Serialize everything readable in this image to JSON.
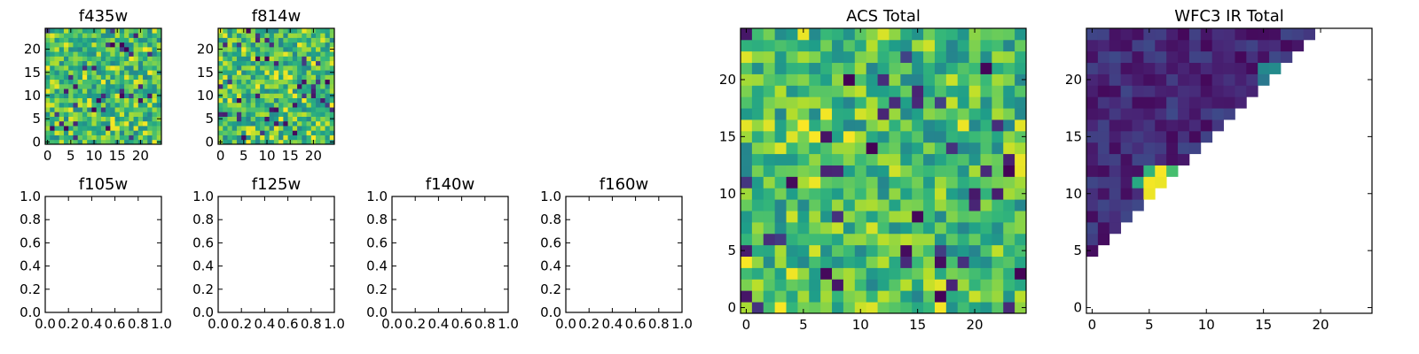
{
  "chart_data": [
    {
      "type": "heatmap",
      "title": "f435w",
      "grid_size": 25,
      "xticks": [
        0,
        5,
        10,
        15,
        20
      ],
      "yticks": [
        0,
        5,
        10,
        15,
        20
      ],
      "xlim": [
        -0.5,
        24.5
      ],
      "ylim": [
        -0.5,
        24.5
      ],
      "colormap": "viridis",
      "content": "noise",
      "seed": 11
    },
    {
      "type": "heatmap",
      "title": "f814w",
      "grid_size": 25,
      "xticks": [
        0,
        5,
        10,
        15,
        20
      ],
      "yticks": [
        0,
        5,
        10,
        15,
        20
      ],
      "xlim": [
        -0.5,
        24.5
      ],
      "ylim": [
        -0.5,
        24.5
      ],
      "colormap": "viridis",
      "content": "noise",
      "seed": 23
    },
    {
      "type": "empty",
      "title": "f105w",
      "xticks": [
        "0.0",
        "0.2",
        "0.4",
        "0.6",
        "0.8",
        "1.0"
      ],
      "yticks": [
        "0.0",
        "0.2",
        "0.4",
        "0.6",
        "0.8",
        "1.0"
      ],
      "xlim": [
        0,
        1
      ],
      "ylim": [
        0,
        1
      ]
    },
    {
      "type": "empty",
      "title": "f125w",
      "xticks": [
        "0.0",
        "0.2",
        "0.4",
        "0.6",
        "0.8",
        "1.0"
      ],
      "yticks": [
        "0.0",
        "0.2",
        "0.4",
        "0.6",
        "0.8",
        "1.0"
      ],
      "xlim": [
        0,
        1
      ],
      "ylim": [
        0,
        1
      ]
    },
    {
      "type": "empty",
      "title": "f140w",
      "xticks": [
        "0.0",
        "0.2",
        "0.4",
        "0.6",
        "0.8",
        "1.0"
      ],
      "yticks": [
        "0.0",
        "0.2",
        "0.4",
        "0.6",
        "0.8",
        "1.0"
      ],
      "xlim": [
        0,
        1
      ],
      "ylim": [
        0,
        1
      ]
    },
    {
      "type": "empty",
      "title": "f160w",
      "xticks": [
        "0.0",
        "0.2",
        "0.4",
        "0.6",
        "0.8",
        "1.0"
      ],
      "yticks": [
        "0.0",
        "0.2",
        "0.4",
        "0.6",
        "0.8",
        "1.0"
      ],
      "xlim": [
        0,
        1
      ],
      "ylim": [
        0,
        1
      ]
    },
    {
      "type": "heatmap",
      "title": "ACS Total",
      "grid_size": 25,
      "xticks": [
        0,
        5,
        10,
        15,
        20
      ],
      "yticks": [
        0,
        5,
        10,
        15,
        20
      ],
      "xlim": [
        -0.5,
        24.5
      ],
      "ylim": [
        -0.5,
        24.5
      ],
      "colormap": "viridis",
      "content": "noise",
      "seed": 37
    },
    {
      "type": "heatmap",
      "title": "WFC3 IR Total",
      "grid_size": 25,
      "xticks": [
        0,
        5,
        10,
        15,
        20
      ],
      "yticks": [
        0,
        5,
        10,
        15,
        20
      ],
      "xlim": [
        -0.5,
        24.5
      ],
      "ylim": [
        -0.5,
        24.5
      ],
      "colormap": "viridis",
      "content": "upper-left triangle (cells with row >= col + 5), mostly dark purple with a bright yellow patch near x 5-7, y 10-12",
      "seed": 53
    }
  ]
}
